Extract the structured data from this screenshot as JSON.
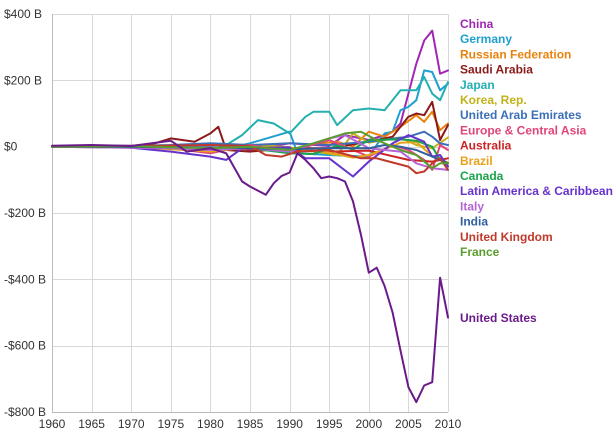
{
  "chart_data": {
    "type": "line",
    "title": "",
    "xlabel": "",
    "ylabel": "",
    "xlim": [
      1960,
      2010
    ],
    "ylim": [
      -800,
      400
    ],
    "x_ticks": [
      1960,
      1965,
      1970,
      1975,
      1980,
      1985,
      1990,
      1995,
      2000,
      2005,
      2010
    ],
    "y_ticks": [
      400,
      200,
      0,
      -200,
      -400,
      -600,
      -800
    ],
    "x_tick_labels": [
      "1960",
      "1965",
      "1970",
      "1975",
      "1980",
      "1985",
      "1990",
      "1995",
      "2000",
      "2005",
      "2010"
    ],
    "y_tick_labels": [
      "$400 B",
      "$200 B",
      "$0",
      "-$200 B",
      "-$400 B",
      "-$600 B",
      "-$800 B"
    ],
    "grid": true,
    "legend_position": "right",
    "series": [
      {
        "name": "China",
        "color": "#a226b5",
        "points": [
          [
            1982,
            5
          ],
          [
            1985,
            -10
          ],
          [
            1990,
            10
          ],
          [
            1995,
            2
          ],
          [
            1997,
            35
          ],
          [
            2000,
            20
          ],
          [
            2002,
            35
          ],
          [
            2003,
            45
          ],
          [
            2004,
            70
          ],
          [
            2005,
            160
          ],
          [
            2006,
            250
          ],
          [
            2007,
            320
          ],
          [
            2008,
            350
          ],
          [
            2009,
            220
          ],
          [
            2010,
            230
          ]
        ]
      },
      {
        "name": "Germany",
        "color": "#1f9fcf",
        "points": [
          [
            1960,
            2
          ],
          [
            1970,
            3
          ],
          [
            1975,
            5
          ],
          [
            1980,
            -15
          ],
          [
            1985,
            10
          ],
          [
            1990,
            45
          ],
          [
            1991,
            -20
          ],
          [
            1995,
            -25
          ],
          [
            2000,
            -30
          ],
          [
            2002,
            40
          ],
          [
            2003,
            45
          ],
          [
            2004,
            110
          ],
          [
            2005,
            120
          ],
          [
            2006,
            140
          ],
          [
            2007,
            230
          ],
          [
            2008,
            225
          ],
          [
            2009,
            170
          ],
          [
            2010,
            190
          ]
        ]
      },
      {
        "name": "Russian Federation",
        "color": "#e8820e",
        "points": [
          [
            1992,
            5
          ],
          [
            1994,
            10
          ],
          [
            1996,
            15
          ],
          [
            1998,
            0
          ],
          [
            2000,
            45
          ],
          [
            2002,
            30
          ],
          [
            2004,
            60
          ],
          [
            2006,
            95
          ],
          [
            2007,
            75
          ],
          [
            2008,
            105
          ],
          [
            2009,
            50
          ],
          [
            2010,
            70
          ]
        ]
      },
      {
        "name": "Saudi Arabia",
        "color": "#8b1a1a",
        "points": [
          [
            1970,
            2
          ],
          [
            1973,
            10
          ],
          [
            1975,
            25
          ],
          [
            1978,
            15
          ],
          [
            1980,
            40
          ],
          [
            1981,
            60
          ],
          [
            1982,
            -10
          ],
          [
            1985,
            -15
          ],
          [
            1990,
            -5
          ],
          [
            1995,
            -5
          ],
          [
            2000,
            15
          ],
          [
            2003,
            30
          ],
          [
            2005,
            90
          ],
          [
            2006,
            100
          ],
          [
            2007,
            95
          ],
          [
            2008,
            135
          ],
          [
            2009,
            20
          ],
          [
            2010,
            65
          ]
        ]
      },
      {
        "name": "Japan",
        "color": "#23b0b0",
        "points": [
          [
            1960,
            0
          ],
          [
            1970,
            2
          ],
          [
            1975,
            0
          ],
          [
            1980,
            -10
          ],
          [
            1982,
            5
          ],
          [
            1984,
            35
          ],
          [
            1986,
            80
          ],
          [
            1988,
            70
          ],
          [
            1990,
            40
          ],
          [
            1992,
            90
          ],
          [
            1993,
            105
          ],
          [
            1995,
            105
          ],
          [
            1996,
            65
          ],
          [
            1998,
            110
          ],
          [
            2000,
            115
          ],
          [
            2002,
            110
          ],
          [
            2004,
            170
          ],
          [
            2006,
            170
          ],
          [
            2007,
            210
          ],
          [
            2008,
            160
          ],
          [
            2009,
            140
          ],
          [
            2010,
            195
          ]
        ]
      },
      {
        "name": "Korea, Rep.",
        "color": "#c2b21a",
        "points": [
          [
            1960,
            0
          ],
          [
            1980,
            -5
          ],
          [
            1986,
            5
          ],
          [
            1990,
            -2
          ],
          [
            1996,
            -25
          ],
          [
            1998,
            40
          ],
          [
            2000,
            12
          ],
          [
            2004,
            28
          ],
          [
            2006,
            5
          ],
          [
            2008,
            -5
          ],
          [
            2010,
            28
          ]
        ]
      },
      {
        "name": "United Arab Emirates",
        "color": "#3b6fb8",
        "points": [
          [
            1975,
            5
          ],
          [
            1980,
            10
          ],
          [
            1985,
            5
          ],
          [
            1990,
            10
          ],
          [
            1995,
            5
          ],
          [
            2000,
            15
          ],
          [
            2005,
            30
          ],
          [
            2007,
            45
          ],
          [
            2008,
            30
          ],
          [
            2009,
            10
          ],
          [
            2010,
            5
          ]
        ]
      },
      {
        "name": "Europe & Central Asia",
        "color": "#e0457b",
        "points": [
          [
            1960,
            0
          ],
          [
            1970,
            3
          ],
          [
            1975,
            -5
          ],
          [
            1980,
            -20
          ],
          [
            1985,
            5
          ],
          [
            1990,
            -15
          ],
          [
            1995,
            20
          ],
          [
            2000,
            -30
          ],
          [
            2003,
            5
          ],
          [
            2005,
            -10
          ],
          [
            2007,
            -40
          ],
          [
            2008,
            -70
          ],
          [
            2009,
            5
          ],
          [
            2010,
            -10
          ]
        ]
      },
      {
        "name": "Australia",
        "color": "#cc2222",
        "points": [
          [
            1960,
            0
          ],
          [
            1970,
            -1
          ],
          [
            1980,
            -5
          ],
          [
            1985,
            -8
          ],
          [
            1990,
            -12
          ],
          [
            1995,
            -15
          ],
          [
            2000,
            -12
          ],
          [
            2005,
            -40
          ],
          [
            2008,
            -45
          ],
          [
            2010,
            -35
          ]
        ]
      },
      {
        "name": "Brazil",
        "color": "#e8a21a",
        "points": [
          [
            1960,
            0
          ],
          [
            1970,
            -2
          ],
          [
            1975,
            -8
          ],
          [
            1980,
            -15
          ],
          [
            1985,
            -2
          ],
          [
            1990,
            -3
          ],
          [
            1995,
            -18
          ],
          [
            1998,
            -33
          ],
          [
            2000,
            -25
          ],
          [
            2002,
            -8
          ],
          [
            2004,
            12
          ],
          [
            2006,
            14
          ],
          [
            2008,
            -28
          ],
          [
            2010,
            -48
          ]
        ]
      },
      {
        "name": "Canada",
        "color": "#1aa34a",
        "points": [
          [
            1960,
            -1
          ],
          [
            1970,
            1
          ],
          [
            1975,
            -5
          ],
          [
            1980,
            -3
          ],
          [
            1985,
            -5
          ],
          [
            1990,
            -20
          ],
          [
            1993,
            -22
          ],
          [
            1996,
            3
          ],
          [
            1998,
            -8
          ],
          [
            2000,
            20
          ],
          [
            2004,
            22
          ],
          [
            2006,
            18
          ],
          [
            2008,
            0
          ],
          [
            2009,
            -40
          ],
          [
            2010,
            -50
          ]
        ]
      },
      {
        "name": "Latin America & Caribbean",
        "color": "#6633cc",
        "points": [
          [
            1960,
            0
          ],
          [
            1970,
            -3
          ],
          [
            1975,
            -15
          ],
          [
            1980,
            -30
          ],
          [
            1982,
            -40
          ],
          [
            1984,
            -5
          ],
          [
            1990,
            -2
          ],
          [
            1992,
            -35
          ],
          [
            1995,
            -35
          ],
          [
            1998,
            -90
          ],
          [
            2000,
            -45
          ],
          [
            2003,
            10
          ],
          [
            2005,
            35
          ],
          [
            2007,
            15
          ],
          [
            2008,
            -30
          ],
          [
            2009,
            -25
          ],
          [
            2010,
            -60
          ]
        ]
      },
      {
        "name": "Italy",
        "color": "#b565d6",
        "points": [
          [
            1960,
            0
          ],
          [
            1975,
            -5
          ],
          [
            1980,
            -10
          ],
          [
            1985,
            -5
          ],
          [
            1990,
            -15
          ],
          [
            1993,
            10
          ],
          [
            1995,
            25
          ],
          [
            1997,
            35
          ],
          [
            2000,
            -5
          ],
          [
            2004,
            -15
          ],
          [
            2006,
            -50
          ],
          [
            2008,
            -65
          ],
          [
            2010,
            -70
          ]
        ]
      },
      {
        "name": "India",
        "color": "#2e5f9e",
        "points": [
          [
            1960,
            0
          ],
          [
            1970,
            -1
          ],
          [
            1980,
            -2
          ],
          [
            1990,
            -8
          ],
          [
            1995,
            -5
          ],
          [
            2000,
            -5
          ],
          [
            2002,
            5
          ],
          [
            2004,
            0
          ],
          [
            2006,
            -10
          ],
          [
            2008,
            -30
          ],
          [
            2010,
            -50
          ]
        ]
      },
      {
        "name": "United Kingdom",
        "color": "#c0392b",
        "points": [
          [
            1960,
            0
          ],
          [
            1970,
            2
          ],
          [
            1980,
            5
          ],
          [
            1985,
            2
          ],
          [
            1987,
            -25
          ],
          [
            1989,
            -30
          ],
          [
            1991,
            -15
          ],
          [
            1995,
            -10
          ],
          [
            1999,
            -35
          ],
          [
            2001,
            -35
          ],
          [
            2005,
            -60
          ],
          [
            2006,
            -80
          ],
          [
            2007,
            -75
          ],
          [
            2008,
            -50
          ],
          [
            2009,
            -35
          ],
          [
            2010,
            -70
          ]
        ]
      },
      {
        "name": "France",
        "color": "#5a9c2e",
        "points": [
          [
            1960,
            0
          ],
          [
            1970,
            1
          ],
          [
            1980,
            -5
          ],
          [
            1985,
            0
          ],
          [
            1990,
            -10
          ],
          [
            1993,
            10
          ],
          [
            1997,
            40
          ],
          [
            1999,
            45
          ],
          [
            2001,
            20
          ],
          [
            2004,
            -10
          ],
          [
            2006,
            -25
          ],
          [
            2008,
            -65
          ],
          [
            2009,
            -50
          ],
          [
            2010,
            -50
          ]
        ]
      },
      {
        "name": "United States",
        "color": "#6a1a8a",
        "points": [
          [
            1960,
            3
          ],
          [
            1965,
            5
          ],
          [
            1970,
            2
          ],
          [
            1975,
            18
          ],
          [
            1977,
            -15
          ],
          [
            1980,
            -5
          ],
          [
            1982,
            -20
          ],
          [
            1984,
            -105
          ],
          [
            1985,
            -120
          ],
          [
            1987,
            -145
          ],
          [
            1988,
            -110
          ],
          [
            1989,
            -88
          ],
          [
            1990,
            -78
          ],
          [
            1991,
            -20
          ],
          [
            1992,
            -40
          ],
          [
            1993,
            -65
          ],
          [
            1994,
            -95
          ],
          [
            1995,
            -90
          ],
          [
            1996,
            -95
          ],
          [
            1997,
            -105
          ],
          [
            1998,
            -165
          ],
          [
            1999,
            -265
          ],
          [
            2000,
            -380
          ],
          [
            2001,
            -365
          ],
          [
            2002,
            -420
          ],
          [
            2003,
            -500
          ],
          [
            2004,
            -615
          ],
          [
            2005,
            -725
          ],
          [
            2006,
            -770
          ],
          [
            2007,
            -720
          ],
          [
            2008,
            -710
          ],
          [
            2009,
            -395
          ],
          [
            2010,
            -515
          ]
        ]
      }
    ]
  }
}
